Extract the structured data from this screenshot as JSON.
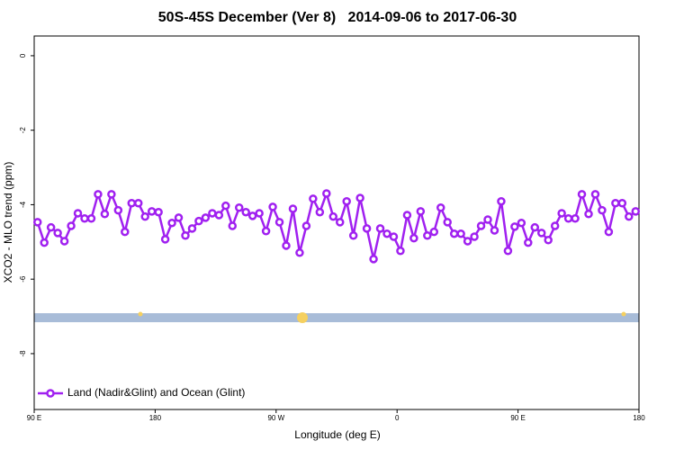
{
  "chart_data": {
    "type": "line",
    "title": "50S-45S December (Ver 8)   2014-09-06 to 2017-06-30",
    "x_label": "Longitude (deg E)",
    "y_label": "XCO2 - MLO trend (ppm)",
    "xlim": [
      90,
      540
    ],
    "ylim": [
      -9.5,
      0.53
    ],
    "xticks": [
      {
        "value": 90,
        "label": "90 E"
      },
      {
        "value": 180,
        "label": "180"
      },
      {
        "value": 270,
        "label": "90 W"
      },
      {
        "value": 360,
        "label": "0"
      },
      {
        "value": 450,
        "label": "90 E"
      },
      {
        "value": 540,
        "label": "180"
      }
    ],
    "yticks": [
      0,
      -2,
      -4,
      -6,
      -8
    ],
    "legend": "bottom-left",
    "x": [
      92.5,
      97.5,
      102.5,
      107.5,
      112.5,
      117.5,
      122.5,
      127.5,
      132.5,
      137.5,
      142.5,
      147.5,
      152.5,
      157.5,
      162.5,
      167.5,
      172.5,
      177.5,
      182.5,
      187.5,
      192.5,
      197.5,
      202.5,
      207.5,
      212.5,
      217.5,
      222.5,
      227.5,
      232.5,
      237.5,
      242.5,
      247.5,
      252.5,
      257.5,
      262.5,
      267.5,
      272.5,
      277.5,
      282.5,
      287.5,
      292.5,
      297.5,
      302.5,
      307.5,
      312.5,
      317.5,
      322.5,
      327.5,
      332.5,
      337.5,
      342.5,
      347.5,
      352.5,
      357.5,
      362.5,
      367.5,
      372.5,
      377.5,
      382.5,
      387.5,
      392.5,
      397.5,
      402.5,
      407.5,
      412.5,
      417.5,
      422.5,
      427.5,
      432.5,
      437.5,
      442.5,
      447.5,
      452.5,
      457.5,
      462.5,
      467.5,
      472.5,
      477.5,
      482.5,
      487.5,
      492.5,
      497.5,
      502.5,
      507.5,
      512.5,
      517.5,
      522.5,
      527.5,
      532.5,
      537.5
    ],
    "series": [
      {
        "name": "Land (Nadir&Glint) and Ocean (Glint)",
        "color": "#a020f0",
        "values": [
          -4.47,
          -5.02,
          -4.61,
          -4.76,
          -4.98,
          -4.57,
          -4.23,
          -4.37,
          -4.37,
          -3.72,
          -4.25,
          -3.72,
          -4.15,
          -4.73,
          -3.96,
          -3.96,
          -4.32,
          -4.18,
          -4.2,
          -4.93,
          -4.49,
          -4.35,
          -4.83,
          -4.64,
          -4.44,
          -4.35,
          -4.23,
          -4.28,
          -4.03,
          -4.57,
          -4.08,
          -4.2,
          -4.3,
          -4.23,
          -4.71,
          -4.06,
          -4.47,
          -5.1,
          -4.11,
          -5.29,
          -4.57,
          -3.84,
          -4.2,
          -3.7,
          -4.32,
          -4.47,
          -3.91,
          -4.83,
          -3.82,
          -4.64,
          -5.46,
          -4.64,
          -4.78,
          -4.86,
          -5.24,
          -4.28,
          -4.9,
          -4.18,
          -4.83,
          -4.73,
          -4.08,
          -4.47,
          -4.78,
          -4.78,
          -4.98,
          -4.86,
          -4.57,
          -4.4,
          -4.69,
          -3.91,
          -5.24,
          -4.59,
          -4.49,
          -5.02,
          -4.61,
          -4.76,
          -4.95,
          -4.57,
          -4.23,
          -4.37,
          -4.37,
          -3.72,
          -4.25,
          -3.72,
          -4.15,
          -4.73,
          -3.96,
          -3.96,
          -4.32,
          -4.18
        ]
      }
    ]
  }
}
